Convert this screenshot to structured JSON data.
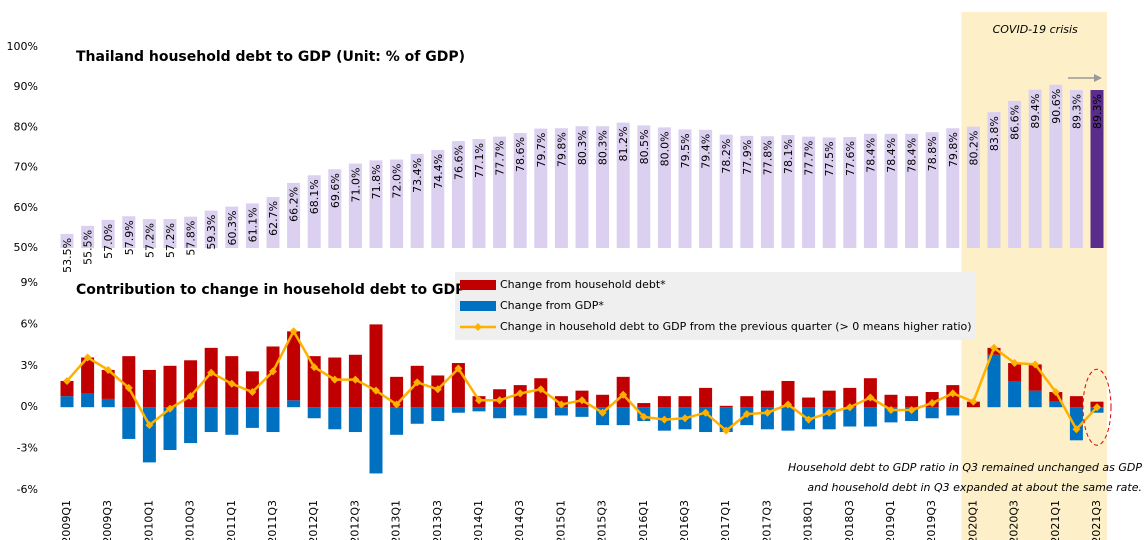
{
  "chart_data": [
    {
      "type": "bar",
      "title": "Thailand household debt to GDP (Unit: % of GDP)",
      "color": "#dcd0f0",
      "highlight_color": "#5a2d8c",
      "values": [
        53.5,
        55.5,
        57.0,
        57.9,
        57.2,
        57.2,
        57.8,
        59.3,
        60.3,
        61.1,
        62.7,
        66.2,
        68.1,
        69.6,
        71.0,
        71.8,
        72.0,
        73.4,
        74.4,
        76.6,
        77.1,
        77.7,
        78.6,
        79.7,
        79.8,
        80.3,
        80.3,
        81.2,
        80.5,
        80.0,
        79.5,
        79.4,
        78.2,
        77.9,
        77.8,
        78.1,
        77.7,
        77.5,
        77.6,
        78.4,
        78.4,
        78.4,
        78.8,
        79.8,
        80.2,
        83.8,
        86.6,
        89.4,
        90.6,
        89.3,
        89.3
      ],
      "value_labels": [
        "53.5%",
        "55.5%",
        "57.0%",
        "57.9%",
        "57.2%",
        "57.2%",
        "57.8%",
        "59.3%",
        "60.3%",
        "61.1%",
        "62.7%",
        "66.2%",
        "68.1%",
        "69.6%",
        "71.0%",
        "71.8%",
        "72.0%",
        "73.4%",
        "74.4%",
        "76.6%",
        "77.1%",
        "77.7%",
        "78.6%",
        "79.7%",
        "79.8%",
        "80.3%",
        "80.3%",
        "81.2%",
        "80.5%",
        "80.0%",
        "79.5%",
        "79.4%",
        "78.2%",
        "77.9%",
        "77.8%",
        "78.1%",
        "77.7%",
        "77.5%",
        "77.6%",
        "78.4%",
        "78.4%",
        "78.4%",
        "78.8%",
        "79.8%",
        "80.2%",
        "83.8%",
        "86.6%",
        "89.4%",
        "90.6%",
        "89.3%",
        "89.3%"
      ],
      "ylim": [
        50,
        100
      ],
      "yticks": [
        {
          "value": 50,
          "label": "50%"
        },
        {
          "value": 60,
          "label": "60%"
        },
        {
          "value": 70,
          "label": "70%"
        },
        {
          "value": 80,
          "label": "80%"
        },
        {
          "value": 90,
          "label": "90%"
        },
        {
          "value": 100,
          "label": "100%"
        }
      ]
    },
    {
      "type": "combo",
      "title": "Contribution to change in household debt to GDP",
      "stacked": true,
      "categories": [
        "2009Q1",
        null,
        "2009Q3",
        null,
        "2010Q1",
        null,
        "2010Q3",
        null,
        "2011Q1",
        null,
        "2011Q3",
        null,
        "2012Q1",
        null,
        "2012Q3",
        null,
        "2013Q1",
        null,
        "2013Q3",
        null,
        "2014Q1",
        null,
        "2014Q3",
        null,
        "2015Q1",
        null,
        "2015Q3",
        null,
        "2016Q1",
        null,
        "2016Q3",
        null,
        "2017Q1",
        null,
        "2017Q3",
        null,
        "2018Q1",
        null,
        "2018Q3",
        null,
        "2019Q1",
        null,
        "2019Q3",
        null,
        "2020Q1",
        null,
        "2020Q3",
        null,
        "2021Q1",
        null,
        "2021Q3"
      ],
      "series": [
        {
          "name": "Change from household debt*",
          "type": "bar",
          "color": "#c00000",
          "values": [
            1.1,
            2.6,
            2.1,
            3.7,
            2.7,
            3.0,
            3.4,
            4.3,
            3.7,
            2.6,
            4.4,
            5.0,
            3.7,
            3.6,
            3.8,
            6.0,
            2.2,
            3.0,
            2.3,
            3.2,
            0.8,
            1.3,
            1.6,
            2.1,
            0.8,
            1.2,
            0.9,
            2.2,
            0.3,
            0.8,
            0.8,
            1.4,
            0.1,
            0.8,
            1.2,
            1.9,
            0.7,
            1.2,
            1.4,
            2.1,
            0.9,
            0.8,
            1.1,
            1.6,
            0.4,
            0.5,
            1.3,
            1.9,
            0.7,
            0.8,
            0.4
          ]
        },
        {
          "name": "Change from GDP*",
          "type": "bar",
          "color": "#0070c0",
          "values": [
            0.8,
            1.0,
            0.6,
            -2.3,
            -4.0,
            -3.1,
            -2.6,
            -1.8,
            -2.0,
            -1.5,
            -1.8,
            0.5,
            -0.8,
            -1.6,
            -1.8,
            -4.8,
            -2.0,
            -1.2,
            -1.0,
            -0.4,
            -0.3,
            -0.8,
            -0.6,
            -0.8,
            -0.6,
            -0.7,
            -1.3,
            -1.3,
            -1.0,
            -1.7,
            -1.6,
            -1.8,
            -1.8,
            -1.3,
            -1.6,
            -1.7,
            -1.6,
            -1.6,
            -1.4,
            -1.4,
            -1.1,
            -1.0,
            -0.8,
            -0.6,
            0.0,
            3.8,
            1.9,
            1.2,
            0.4,
            -2.4,
            -0.4
          ]
        },
        {
          "name": "Change in household debt to GDP from the previous quarter (> 0 means higher ratio)",
          "type": "line",
          "color": "#ffb000",
          "values": [
            1.9,
            3.6,
            2.7,
            1.4,
            -1.3,
            -0.1,
            0.8,
            2.5,
            1.7,
            1.1,
            2.6,
            5.5,
            2.9,
            2.0,
            2.0,
            1.2,
            0.2,
            1.8,
            1.3,
            2.8,
            0.5,
            0.5,
            1.0,
            1.3,
            0.2,
            0.5,
            -0.4,
            0.9,
            -0.7,
            -0.9,
            -0.8,
            -0.4,
            -1.7,
            -0.5,
            -0.4,
            0.2,
            -0.9,
            -0.4,
            0.0,
            0.7,
            -0.2,
            -0.2,
            0.3,
            1.0,
            0.4,
            4.3,
            3.2,
            3.1,
            1.1,
            -1.6,
            0.0
          ]
        }
      ],
      "ylim": [
        -6,
        9
      ],
      "yticks": [
        {
          "value": -6,
          "label": "-6%"
        },
        {
          "value": -3,
          "label": "-3%"
        },
        {
          "value": 0,
          "label": "0%"
        },
        {
          "value": 3,
          "label": "3%"
        },
        {
          "value": 6,
          "label": "6%"
        },
        {
          "value": 9,
          "label": "9%"
        }
      ],
      "shade": {
        "from": "2020Q1",
        "to": "2021Q3",
        "label": "COVID-19 crisis",
        "color": "#fdf0c8"
      },
      "annotation": {
        "lines": [
          "Household debt to GDP ratio in Q3 remained unchanged as GDP",
          "and household debt in Q3 expanded at about the same rate."
        ],
        "color": "#e00000"
      }
    }
  ]
}
